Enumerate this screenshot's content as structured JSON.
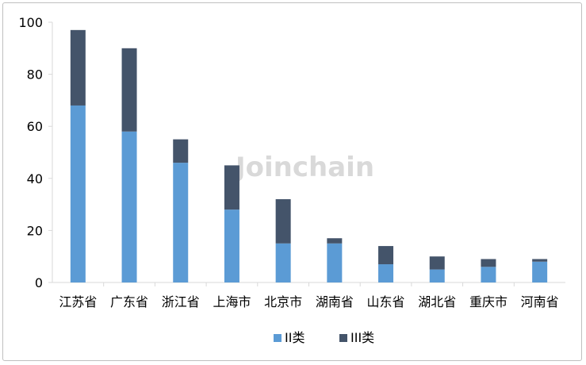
{
  "chart_data": {
    "type": "bar",
    "stacked": true,
    "categories": [
      "江苏省",
      "广东省",
      "浙江省",
      "上海市",
      "北京市",
      "湖南省",
      "山东省",
      "湖北省",
      "重庆市",
      "河南省"
    ],
    "series": [
      {
        "name": "II类",
        "color": "#5b9bd5",
        "values": [
          68,
          58,
          46,
          28,
          15,
          15,
          7,
          5,
          6,
          8
        ]
      },
      {
        "name": "III类",
        "color": "#44546a",
        "values": [
          29,
          32,
          9,
          17,
          17,
          2,
          7,
          5,
          3,
          1
        ]
      }
    ],
    "ylim": [
      0,
      100
    ],
    "yticks": [
      0,
      20,
      40,
      60,
      80,
      100
    ],
    "xlabel": "",
    "ylabel": "",
    "title": "",
    "grid": false,
    "legend_position": "bottom",
    "watermark": "Joinchain"
  }
}
